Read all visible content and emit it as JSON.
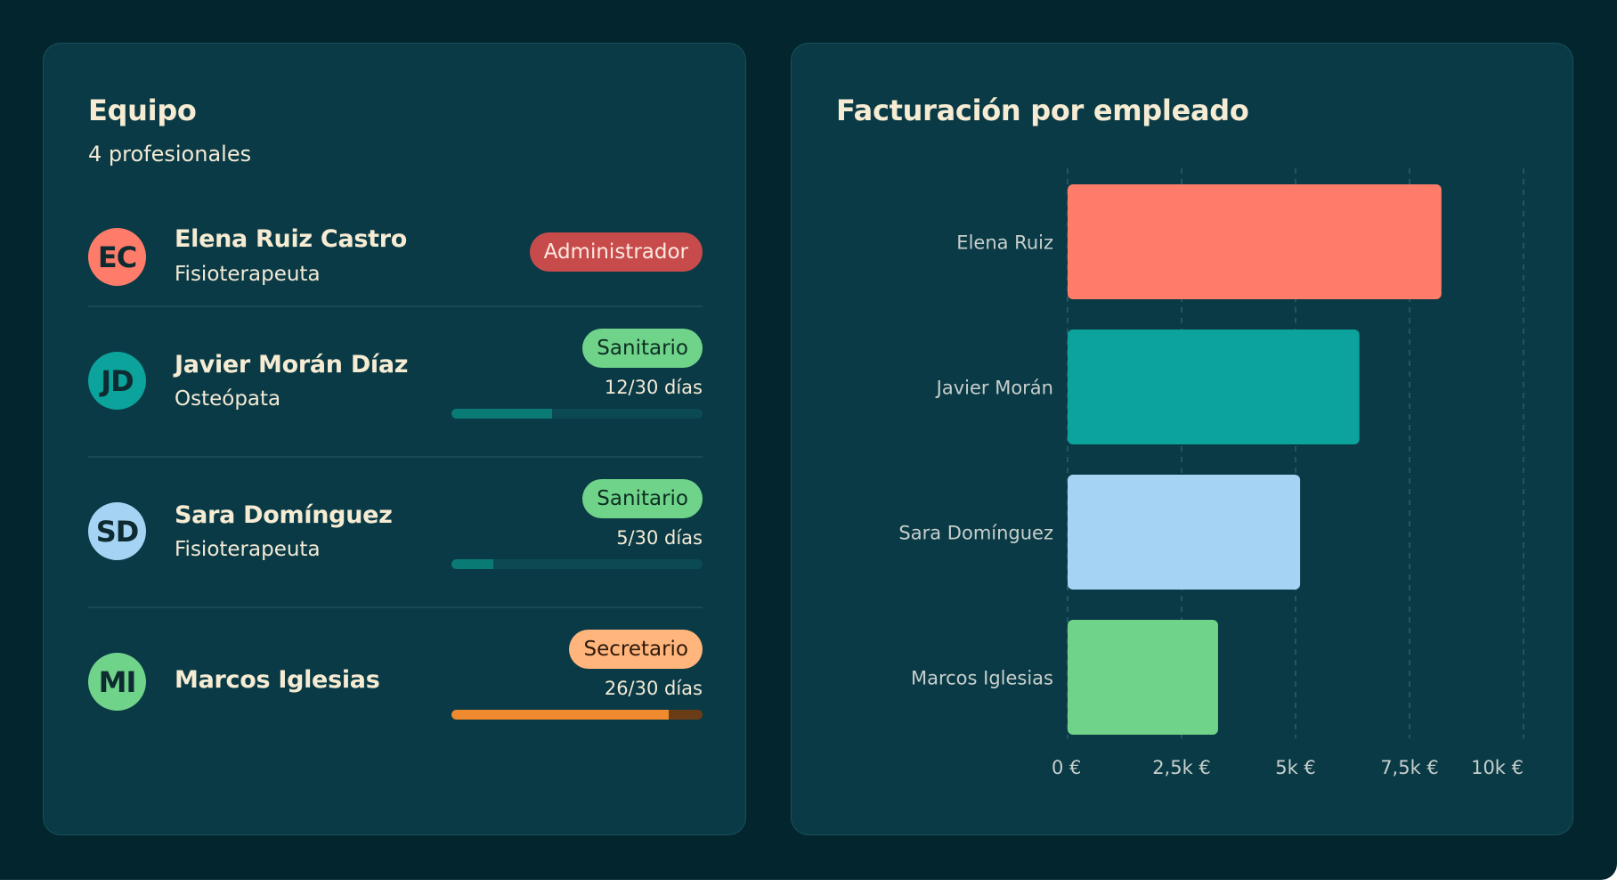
{
  "team": {
    "title": "Equipo",
    "subtitle": "4 profesionales",
    "members": [
      {
        "initials": "EC",
        "avatar_color": "#ff7c6a",
        "name": "Elena Ruiz Castro",
        "role": "Fisioterapeuta",
        "badge": "Administrador",
        "badge_bg": "#c84b4b",
        "badge_fg": "#fbe9e0"
      },
      {
        "initials": "JD",
        "avatar_color": "#0ba39c",
        "name": "Javier Morán Díaz",
        "role": "Osteópata",
        "badge": "Sanitario",
        "badge_bg": "#70d38a",
        "badge_fg": "#0d2f22",
        "days_label": "12/30 días",
        "days_used": 12,
        "days_total": 30,
        "bar_fill": "#0a7b74",
        "bar_track": "#0b4a52"
      },
      {
        "initials": "SD",
        "avatar_color": "#a5d3f3",
        "name": "Sara Domínguez",
        "role": "Fisioterapeuta",
        "badge": "Sanitario",
        "badge_bg": "#70d38a",
        "badge_fg": "#0d2f22",
        "days_label": "5/30 días",
        "days_used": 5,
        "days_total": 30,
        "bar_fill": "#0a7b74",
        "bar_track": "#0b4a52"
      },
      {
        "initials": "MI",
        "avatar_color": "#70d38a",
        "name": "Marcos Iglesias",
        "role": "",
        "badge": "Secretario",
        "badge_bg": "#ffb57c",
        "badge_fg": "#2d1a0b",
        "days_label": "26/30 días",
        "days_used": 26,
        "days_total": 30,
        "bar_fill": "#f08a2e",
        "bar_track": "#6a3d16"
      }
    ]
  },
  "chart_data": {
    "type": "bar",
    "orientation": "horizontal",
    "title": "Facturación por empleado",
    "categories": [
      "Elena Ruiz",
      "Javier Morán",
      "Sara Domínguez",
      "Marcos Iglesias"
    ],
    "values": [
      8200,
      6400,
      5100,
      3300
    ],
    "colors": [
      "#ff7c6a",
      "#0ba39c",
      "#a5d3f3",
      "#70d38a"
    ],
    "xlim": [
      0,
      10000
    ],
    "ticks": [
      0,
      2500,
      5000,
      7500,
      10000
    ],
    "tick_labels": [
      "0 €",
      "2,5k €",
      "5k €",
      "7,5k €",
      "10k €"
    ],
    "grid": true
  }
}
